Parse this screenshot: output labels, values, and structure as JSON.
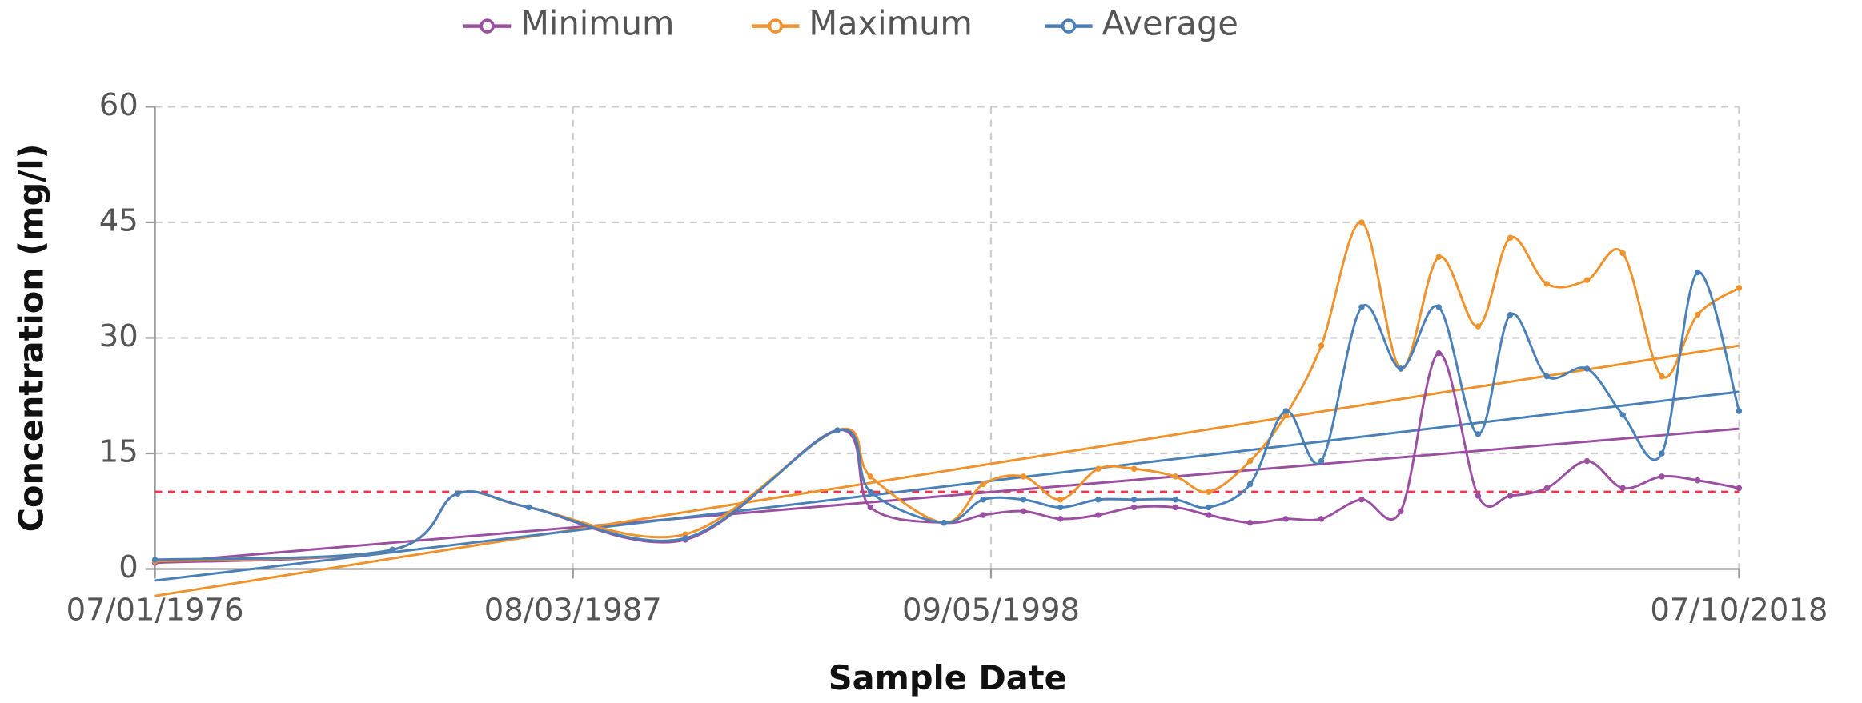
{
  "chart_data": {
    "type": "line",
    "y_label": "Concentration (mg/l)",
    "x_label": "Sample Date",
    "x": [
      "1976-07-01",
      "1982-10-19",
      "1984-07-12",
      "1986-06-02",
      "1990-07-27",
      "1994-08-08",
      "1995-06-24",
      "1997-06-06",
      "1998-06-20",
      "1999-07-16",
      "2000-07-08",
      "2001-07-09",
      "2002-06-21",
      "2003-07-27",
      "2004-06-14",
      "2005-07-20",
      "2006-07-02",
      "2007-06-10",
      "2008-07-05",
      "2009-07-19",
      "2010-07-22",
      "2011-08-07",
      "2012-06-14",
      "2013-06-04",
      "2014-06-28",
      "2015-06-10",
      "2016-06-22",
      "2017-06-03",
      "2018-07-10"
    ],
    "series": [
      {
        "name": "Minimum",
        "color": "#9a4fa0",
        "values": [
          0.8,
          2.5,
          9.8,
          8,
          3.8,
          18,
          8,
          6,
          7,
          7.5,
          6.5,
          7,
          8,
          8,
          7,
          6,
          6.5,
          6.5,
          9,
          7.5,
          28,
          9.5,
          9.5,
          10.5,
          14,
          10.5,
          12,
          11.5,
          10.5
        ]
      },
      {
        "name": "Maximum",
        "color": "#f0922b",
        "values": [
          1,
          2.5,
          9.8,
          8,
          4.5,
          18,
          12,
          6,
          11,
          12,
          9,
          13,
          13,
          12,
          10,
          14,
          20,
          29,
          45,
          26,
          40.5,
          31.5,
          43,
          37,
          37.5,
          41,
          25,
          33,
          36.5
        ]
      },
      {
        "name": "Average",
        "color": "#4a80b8",
        "values": [
          1.2,
          2.5,
          9.8,
          8,
          4,
          18,
          10,
          6,
          9,
          9,
          8,
          9,
          9,
          9,
          8,
          11,
          20.5,
          14,
          34,
          26,
          34,
          17.5,
          33,
          25,
          26,
          20,
          15,
          38.5,
          20.5
        ]
      }
    ],
    "trendlines": [
      {
        "color": "#9a4fa0",
        "values": [
          0.8,
          18.2
        ]
      },
      {
        "color": "#f0922b",
        "values": [
          -3.5,
          29
        ]
      },
      {
        "color": "#4a80b8",
        "values": [
          -1.5,
          23
        ]
      }
    ],
    "threshold": {
      "value": 10,
      "color": "#e8384f"
    },
    "xlim": [
      "1976-07-01",
      "2018-07-10"
    ],
    "xticks": [
      {
        "value": "1976-07-01",
        "label": "07/01/1976"
      },
      {
        "value": "1987-08-03",
        "label": "08/03/1987"
      },
      {
        "value": "1998-09-05",
        "label": "09/05/1998"
      },
      {
        "value": "2018-07-10",
        "label": "07/10/2018"
      }
    ],
    "ylim": [
      0,
      60
    ],
    "yticks": [
      0,
      15,
      30,
      45,
      60
    ],
    "grid": true,
    "legend": "top"
  }
}
